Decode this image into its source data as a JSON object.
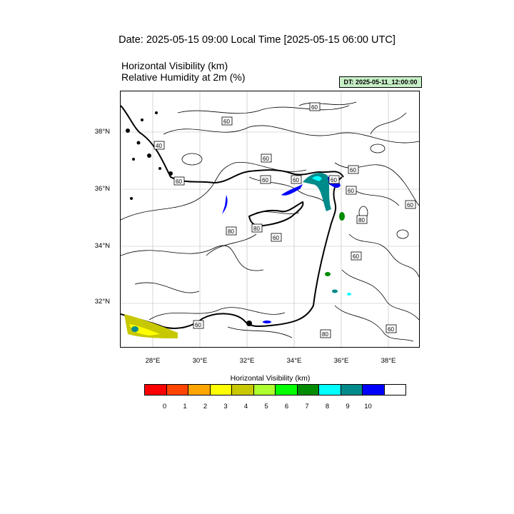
{
  "header": {
    "date_line": "Date: 2025-05-15  09:00 Local Time [2025-05-15  06:00 UTC]",
    "title_line1": "Horizontal Visibility   (km)",
    "title_line2": "Relative Humidity at 2m   (%)",
    "dt_badge": "DT: 2025-05-11_12:00:00"
  },
  "map": {
    "lat_labels": [
      "38°N",
      "36°N",
      "34°N",
      "32°N"
    ],
    "lon_labels": [
      "28°E",
      "30°E",
      "32°E",
      "34°E",
      "36°E",
      "38°E"
    ],
    "contour_labels": [
      "60",
      "60",
      "40",
      "60",
      "60",
      "60",
      "60",
      "60",
      "60",
      "60",
      "60",
      "80",
      "80",
      "80",
      "60",
      "60",
      "60",
      "80",
      "60"
    ]
  },
  "colorbar": {
    "title": "Horizontal Visibility  (km)",
    "colors": [
      "#ff0000",
      "#ff4500",
      "#ffa500",
      "#ffff00",
      "#c8c800",
      "#adff2f",
      "#00ff00",
      "#008b00",
      "#00ffff",
      "#008b8b",
      "#0000ff",
      "#ffffff"
    ],
    "ticks": [
      "0",
      "1",
      "2",
      "3",
      "4",
      "5",
      "6",
      "7",
      "8",
      "9",
      "10"
    ]
  }
}
